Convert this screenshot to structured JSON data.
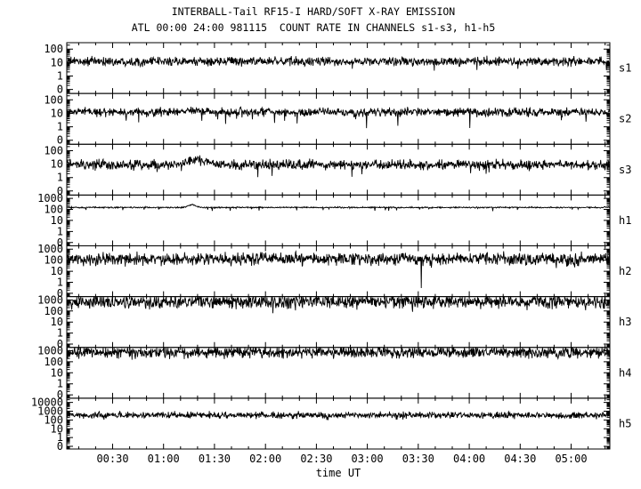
{
  "colors": {
    "background": "#ffffff",
    "foreground": "#000000"
  },
  "chart_data": {
    "type": "line",
    "title": "INTERBALL-Tail RF15-I HARD/SOFT X-RAY EMISSION",
    "subtitle": "ATL 00:00 24:00 981115  COUNT RATE IN CHANNELS s1-s3, h1-h5",
    "xlabel": "time UT",
    "x_range_hours": [
      0.05,
      5.38
    ],
    "x_minor_interval_hours": 0.166667,
    "x_major_ticks": [
      {
        "hour": 0.5,
        "label": "00:30"
      },
      {
        "hour": 1.0,
        "label": "01:00"
      },
      {
        "hour": 1.5,
        "label": "01:30"
      },
      {
        "hour": 2.0,
        "label": "02:00"
      },
      {
        "hour": 2.5,
        "label": "02:30"
      },
      {
        "hour": 3.0,
        "label": "03:00"
      },
      {
        "hour": 3.5,
        "label": "03:30"
      },
      {
        "hour": 4.0,
        "label": "04:00"
      },
      {
        "hour": 4.5,
        "label": "04:30"
      },
      {
        "hour": 5.0,
        "label": "05:00"
      }
    ],
    "grid": false,
    "legend": "channel labels on right side",
    "panels": [
      {
        "name": "s1",
        "ymin": 0.05,
        "ymax": 300,
        "yticks": [
          {
            "value": 100,
            "label": "100"
          },
          {
            "value": 10,
            "label": "10"
          },
          {
            "value": 1,
            "label": "1"
          },
          {
            "value": 0.1,
            "label": "0"
          }
        ],
        "baseline": 12,
        "noise_dex": 0.16,
        "down_spike_p": 0.012,
        "down_spike_dex": 1.0,
        "features": []
      },
      {
        "name": "s2",
        "ymin": 0.05,
        "ymax": 300,
        "yticks": [
          {
            "value": 100,
            "label": "100"
          },
          {
            "value": 10,
            "label": "10"
          },
          {
            "value": 1,
            "label": "1"
          },
          {
            "value": 0.1,
            "label": "0"
          }
        ],
        "baseline": 12,
        "noise_dex": 0.15,
        "down_spike_p": 0.012,
        "down_spike_dex": 1.0,
        "features": [
          {
            "type": "bump",
            "t": 1.3,
            "w": 0.12,
            "f": 1.5
          }
        ]
      },
      {
        "name": "s3",
        "ymin": 0.05,
        "ymax": 300,
        "yticks": [
          {
            "value": 100,
            "label": "100"
          },
          {
            "value": 10,
            "label": "10"
          },
          {
            "value": 1,
            "label": "1"
          },
          {
            "value": 0.1,
            "label": "0"
          }
        ],
        "baseline": 9,
        "noise_dex": 0.17,
        "down_spike_p": 0.012,
        "down_spike_dex": 0.9,
        "features": [
          {
            "type": "bump",
            "t": 1.33,
            "w": 0.13,
            "f": 2.4
          }
        ]
      },
      {
        "name": "h1",
        "ymin": 0.05,
        "ymax": 2000,
        "yticks": [
          {
            "value": 1000,
            "label": "1000"
          },
          {
            "value": 100,
            "label": "100"
          },
          {
            "value": 10,
            "label": "10"
          },
          {
            "value": 1,
            "label": "1"
          },
          {
            "value": 0.1,
            "label": "0"
          }
        ],
        "baseline": 150,
        "noise_dex": 0.03,
        "down_spike_p": 0.02,
        "down_spike_dex": 0.35,
        "features": [
          {
            "type": "bump",
            "t": 1.28,
            "w": 0.05,
            "f": 1.8
          }
        ]
      },
      {
        "name": "h2",
        "ymin": 0.05,
        "ymax": 2000,
        "yticks": [
          {
            "value": 1000,
            "label": "1000"
          },
          {
            "value": 100,
            "label": "100"
          },
          {
            "value": 10,
            "label": "10"
          },
          {
            "value": 1,
            "label": "1"
          },
          {
            "value": 0.1,
            "label": "0"
          }
        ],
        "baseline": 130,
        "noise_dex": 0.27,
        "down_spike_p": 0.02,
        "down_spike_dex": 0.5,
        "features": [
          {
            "type": "spike_down",
            "t": 3.53,
            "v": 0.3
          }
        ]
      },
      {
        "name": "h3",
        "ymin": 0.05,
        "ymax": 2000,
        "yticks": [
          {
            "value": 1000,
            "label": "1000"
          },
          {
            "value": 100,
            "label": "100"
          },
          {
            "value": 10,
            "label": "10"
          },
          {
            "value": 1,
            "label": "1"
          },
          {
            "value": 0.1,
            "label": "0"
          }
        ],
        "baseline": 700,
        "noise_dex": 0.3,
        "down_spike_p": 0.012,
        "down_spike_dex": 0.5,
        "features": []
      },
      {
        "name": "h4",
        "ymin": 0.05,
        "ymax": 2000,
        "yticks": [
          {
            "value": 1000,
            "label": "1000"
          },
          {
            "value": 100,
            "label": "100"
          },
          {
            "value": 10,
            "label": "10"
          },
          {
            "value": 1,
            "label": "1"
          },
          {
            "value": 0.1,
            "label": "0"
          }
        ],
        "baseline": 700,
        "noise_dex": 0.25,
        "down_spike_p": 0.01,
        "down_spike_dex": 0.45,
        "features": []
      },
      {
        "name": "h5",
        "ymin": 0.05,
        "ymax": 30000,
        "yticks": [
          {
            "value": 10000,
            "label": "10000"
          },
          {
            "value": 1000,
            "label": "1000"
          },
          {
            "value": 100,
            "label": "100"
          },
          {
            "value": 10,
            "label": "10"
          },
          {
            "value": 1,
            "label": "1"
          },
          {
            "value": 0.1,
            "label": "0"
          }
        ],
        "baseline": 350,
        "noise_dex": 0.18,
        "down_spike_p": 0.01,
        "down_spike_dex": 0.4,
        "features": []
      }
    ]
  }
}
